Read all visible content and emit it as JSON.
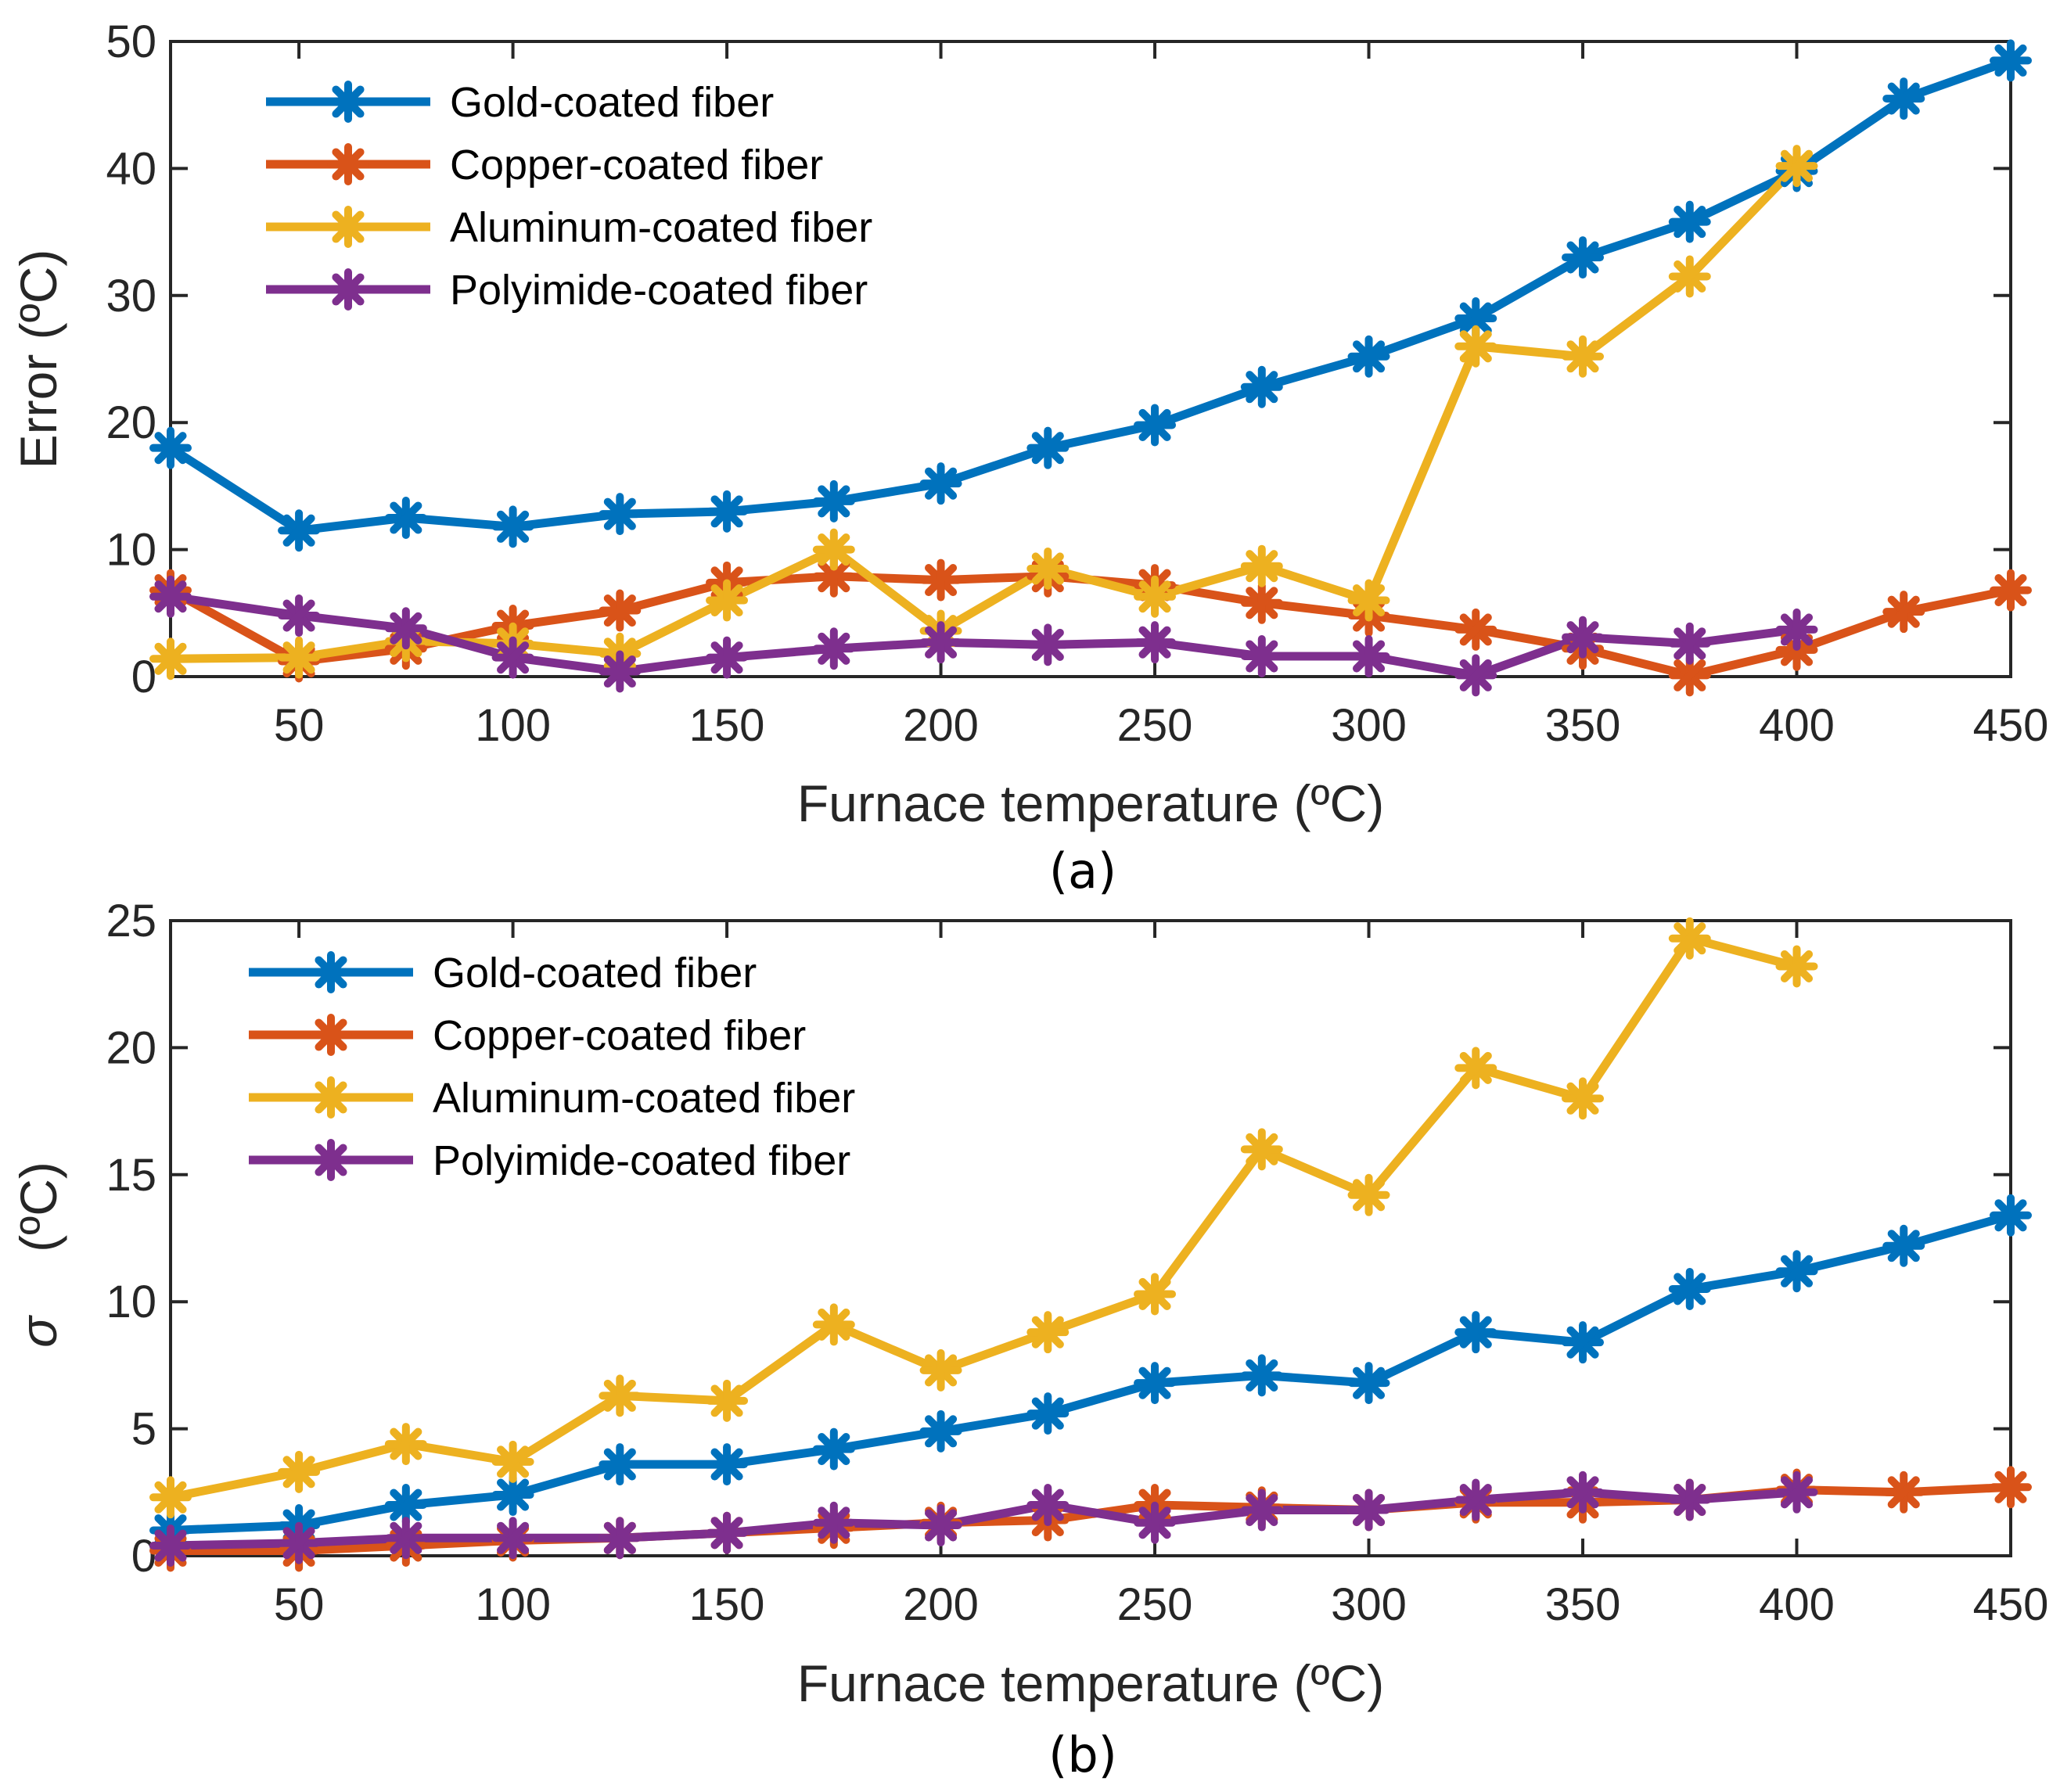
{
  "colors": {
    "gold": "#0072BD",
    "copper": "#D95319",
    "aluminum": "#EDB120",
    "polyimide": "#7E2F8E",
    "axis": "#262626"
  },
  "chart_data": [
    {
      "type": "line",
      "subcaption": "(a)",
      "xlabel": "Furnace temperature (ºC)",
      "ylabel": "Error (ºC)",
      "xlim": [
        20,
        450
      ],
      "ylim": [
        0,
        50
      ],
      "xticks": [
        50,
        100,
        150,
        200,
        250,
        300,
        350,
        400,
        450
      ],
      "yticks": [
        0,
        10,
        20,
        30,
        40,
        50
      ],
      "legend_position": "top-left",
      "series": [
        {
          "name": "Gold-coated fiber",
          "key": "gold",
          "x": [
            20,
            50,
            75,
            100,
            125,
            150,
            175,
            200,
            225,
            250,
            275,
            300,
            325,
            350,
            375,
            400,
            425,
            450
          ],
          "values": [
            18.0,
            11.5,
            12.5,
            11.8,
            12.8,
            13.0,
            13.8,
            15.2,
            18.0,
            19.8,
            22.8,
            25.2,
            28.2,
            33.0,
            35.8,
            39.8,
            45.5,
            48.5
          ]
        },
        {
          "name": "Copper-coated fiber",
          "key": "copper",
          "x": [
            20,
            50,
            75,
            100,
            125,
            150,
            175,
            200,
            225,
            250,
            275,
            300,
            325,
            350,
            375,
            400,
            425,
            450
          ],
          "values": [
            6.8,
            1.2,
            2.2,
            4.0,
            5.2,
            7.4,
            7.9,
            7.6,
            7.9,
            7.2,
            5.8,
            4.8,
            3.7,
            2.2,
            0.1,
            2.1,
            5.1,
            6.8
          ]
        },
        {
          "name": "Aluminum-coated fiber",
          "key": "aluminum",
          "x": [
            20,
            50,
            75,
            100,
            125,
            150,
            175,
            200,
            225,
            250,
            275,
            300,
            325,
            350,
            375,
            400
          ],
          "values": [
            1.4,
            1.5,
            2.8,
            2.6,
            1.8,
            6.0,
            10.0,
            3.6,
            8.5,
            6.3,
            8.7,
            6.0,
            26.0,
            25.2,
            31.5,
            40.2
          ]
        },
        {
          "name": "Polyimide-coated fiber",
          "key": "polyimide",
          "x": [
            20,
            50,
            75,
            100,
            125,
            150,
            175,
            200,
            225,
            250,
            275,
            300,
            325,
            350,
            375,
            400
          ],
          "values": [
            6.3,
            4.8,
            3.8,
            1.5,
            0.4,
            1.5,
            2.2,
            2.7,
            2.5,
            2.7,
            1.6,
            1.6,
            0.1,
            3.1,
            2.6,
            3.7
          ]
        }
      ]
    },
    {
      "type": "line",
      "subcaption": "(b)",
      "xlabel": "Furnace temperature (ºC)",
      "ylabel_symbol": "σ",
      "ylabel": "(ºC)",
      "xlim": [
        20,
        450
      ],
      "ylim": [
        0,
        25
      ],
      "xticks": [
        50,
        100,
        150,
        200,
        250,
        300,
        350,
        400,
        450
      ],
      "yticks": [
        0,
        5,
        10,
        15,
        20,
        25
      ],
      "legend_position": "top-left",
      "series": [
        {
          "name": "Gold-coated fiber",
          "key": "gold",
          "x": [
            20,
            50,
            75,
            100,
            125,
            150,
            175,
            200,
            225,
            250,
            275,
            300,
            325,
            350,
            375,
            400,
            425,
            450
          ],
          "values": [
            1.0,
            1.2,
            2.0,
            2.4,
            3.6,
            3.6,
            4.2,
            4.9,
            5.6,
            6.8,
            7.1,
            6.8,
            8.8,
            8.4,
            10.5,
            11.2,
            12.2,
            13.4
          ]
        },
        {
          "name": "Copper-coated fiber",
          "key": "copper",
          "x": [
            20,
            50,
            75,
            100,
            125,
            150,
            175,
            200,
            225,
            250,
            275,
            300,
            325,
            350,
            375,
            400,
            425,
            450
          ],
          "values": [
            0.2,
            0.2,
            0.4,
            0.6,
            0.7,
            0.9,
            1.1,
            1.3,
            1.4,
            2.0,
            1.9,
            1.8,
            2.1,
            2.1,
            2.2,
            2.6,
            2.5,
            2.7
          ]
        },
        {
          "name": "Aluminum-coated fiber",
          "key": "aluminum",
          "x": [
            20,
            50,
            75,
            100,
            125,
            150,
            175,
            200,
            225,
            250,
            275,
            300,
            325,
            350,
            375,
            400
          ],
          "values": [
            2.3,
            3.3,
            4.4,
            3.7,
            6.3,
            6.1,
            9.1,
            7.3,
            8.8,
            10.3,
            16.0,
            14.2,
            19.2,
            18.0,
            24.3,
            23.2
          ]
        },
        {
          "name": "Polyimide-coated fiber",
          "key": "polyimide",
          "x": [
            20,
            50,
            75,
            100,
            125,
            150,
            175,
            200,
            225,
            250,
            275,
            300,
            325,
            350,
            375,
            400
          ],
          "values": [
            0.4,
            0.5,
            0.7,
            0.7,
            0.7,
            0.9,
            1.3,
            1.2,
            2.0,
            1.3,
            1.8,
            1.8,
            2.2,
            2.5,
            2.2,
            2.5
          ]
        }
      ]
    }
  ]
}
